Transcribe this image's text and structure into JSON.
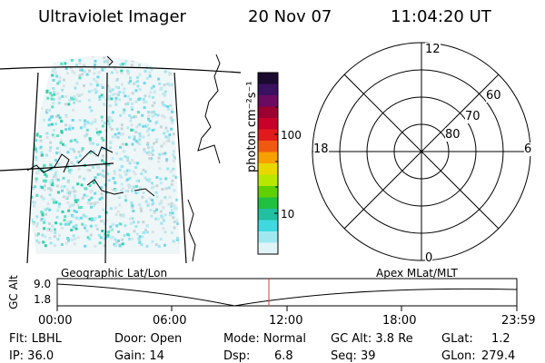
{
  "header": {
    "title": "Ultraviolet Imager",
    "date": "20 Nov 07",
    "time": "11:04:20 UT"
  },
  "colorbar": {
    "unit_label": "photon cm⁻²s⁻¹",
    "ticks": [
      "100",
      "10"
    ],
    "colors_top_to_bottom": [
      "#1a0a2e",
      "#3a1060",
      "#6a0a60",
      "#9a0030",
      "#c8002a",
      "#e31a1c",
      "#f05a10",
      "#f7a000",
      "#e8d800",
      "#b8e800",
      "#60d000",
      "#20c040",
      "#20c0a0",
      "#40d8e0",
      "#a0e8f0",
      "#e0f4f8"
    ]
  },
  "polar_plot": {
    "mlt_labels": {
      "top": "12",
      "left": "18",
      "right": "6",
      "bottom": "0"
    },
    "lat_labels": [
      "60",
      "70",
      "80"
    ]
  },
  "timeline": {
    "gc_alt_label": "GC Alt",
    "y_max": "9.0",
    "y_min": "1.8",
    "left_caption": "Geographic Lat/Lon",
    "right_caption": "Apex  MLat/MLT",
    "x_ticks": [
      "00:00",
      "06:00",
      "12:00",
      "18:00",
      "23:59"
    ],
    "current_time_marker": "11:04:20",
    "marker_color": "#d04040"
  },
  "info": {
    "flt": "Flt: LBHL",
    "ip": "IP: 36.0",
    "door": "Door: Open",
    "gain": "Gain: 14",
    "mode": "Mode: Normal",
    "dsp_label": "Dsp:",
    "dsp_value": "6.8",
    "gc_alt": "GC Alt: 3.8 Re",
    "seq": "Seq: 39",
    "glat_label": "GLat:",
    "glat_value": "1.2",
    "glon_label": "GLon:",
    "glon_value": "279.4"
  }
}
